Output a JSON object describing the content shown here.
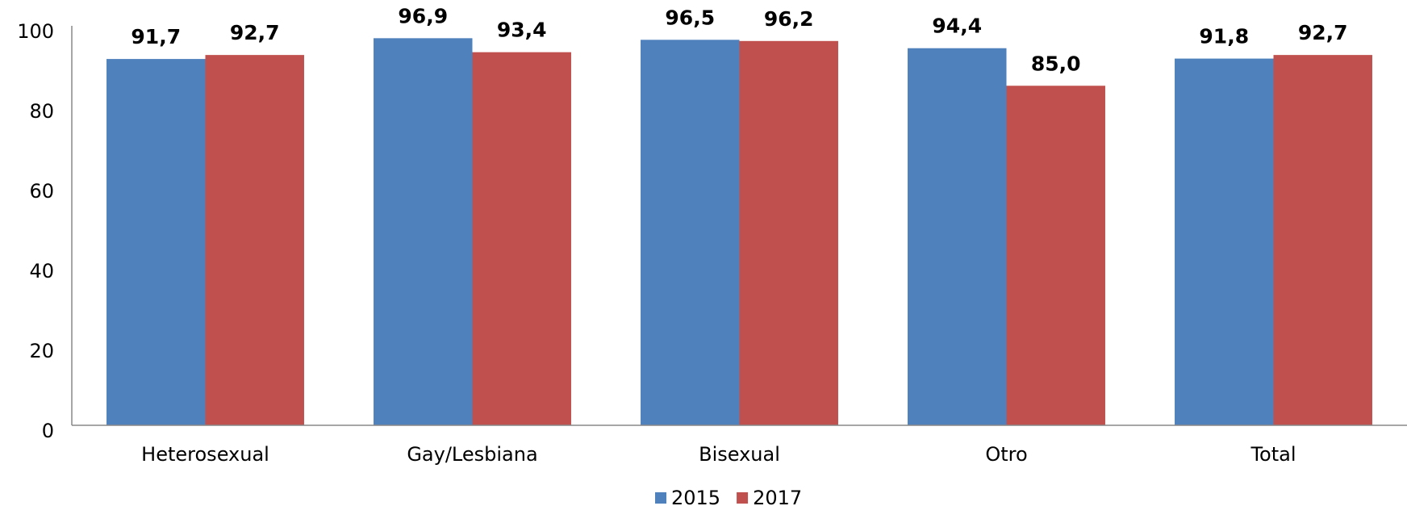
{
  "chart_data": {
    "type": "bar",
    "categories": [
      "Heterosexual",
      "Gay/Lesbiana",
      "Bisexual",
      "Otro",
      "Total"
    ],
    "series": [
      {
        "name": "2015",
        "color": "#4f81bd",
        "values": [
          91.7,
          96.9,
          96.5,
          94.4,
          91.8
        ],
        "value_labels": [
          "91,7",
          "96,9",
          "96,5",
          "94,4",
          "91,8"
        ]
      },
      {
        "name": "2017",
        "color": "#c0504d",
        "values": [
          92.7,
          93.4,
          96.2,
          85.0,
          92.7
        ],
        "value_labels": [
          "92,7",
          "93,4",
          "96,2",
          "85,0",
          "92,7"
        ]
      }
    ],
    "ylim": [
      0,
      100
    ],
    "yticks": [
      0,
      20,
      40,
      60,
      80,
      100
    ],
    "grid": false,
    "legend": "bottom"
  }
}
